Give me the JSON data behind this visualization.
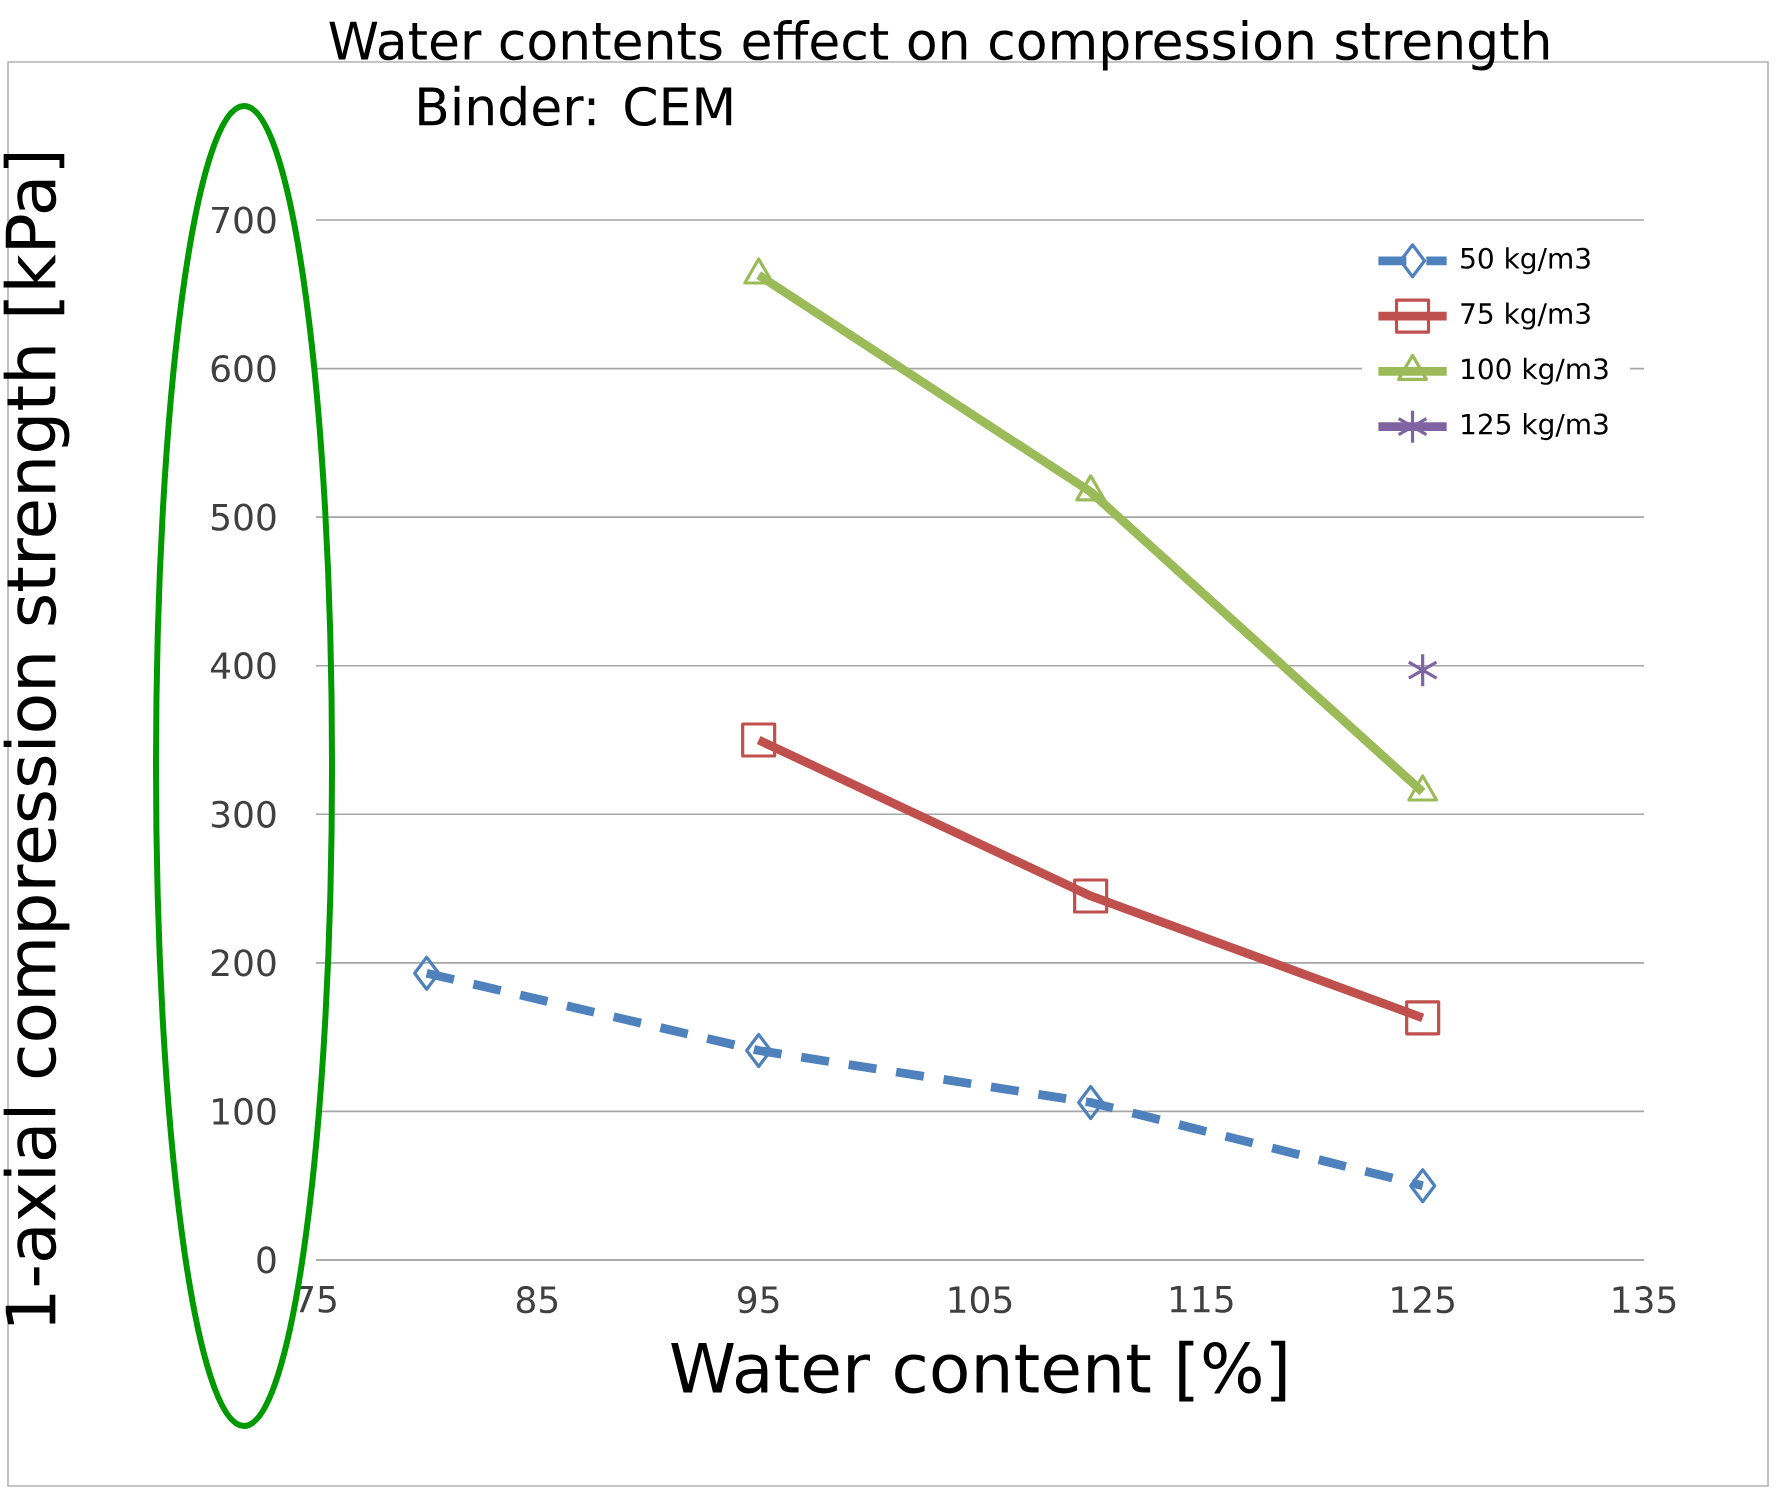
{
  "chart_data": {
    "type": "line",
    "title": "Water contents effect on compression strength",
    "subtitle": "Binder: CEM",
    "xlabel": "Water content [%]",
    "ylabel": "1-axial compression strength [kPa]",
    "xlim": [
      75,
      135
    ],
    "xticks": [
      75,
      85,
      95,
      105,
      115,
      125,
      135
    ],
    "ylim": [
      0,
      700
    ],
    "yticks": [
      0,
      100,
      200,
      300,
      400,
      500,
      600,
      700
    ],
    "grid": "y",
    "legend": "top right",
    "series": [
      {
        "name": "50 kg/m3",
        "color": "#4f81bd",
        "marker": "diamond",
        "line_style": "dashed",
        "x": [
          80,
          95,
          110,
          125
        ],
        "values": [
          193,
          141,
          106,
          50
        ]
      },
      {
        "name": "75 kg/m3",
        "color": "#c0504d",
        "marker": "square",
        "line_style": "solid",
        "x": [
          95,
          110,
          125
        ],
        "values": [
          350,
          245,
          163
        ]
      },
      {
        "name": "100 kg/m3",
        "color": "#9bbb59",
        "marker": "triangle",
        "line_style": "solid",
        "x": [
          95,
          110,
          125
        ],
        "values": [
          663,
          517,
          315
        ]
      },
      {
        "name": "125 kg/m3",
        "color": "#8064a2",
        "marker": "cross",
        "line_style": "solid",
        "x": [
          125
        ],
        "values": [
          397
        ]
      }
    ]
  }
}
